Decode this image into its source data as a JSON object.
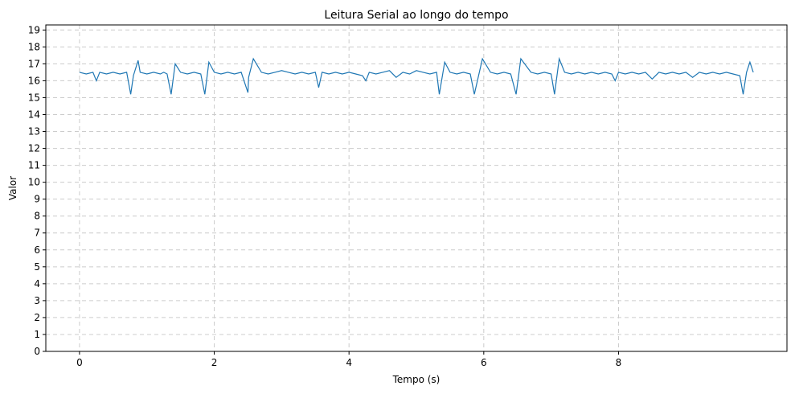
{
  "chart_data": {
    "type": "line",
    "title": "Leitura Serial ao longo do tempo",
    "xlabel": "Tempo (s)",
    "ylabel": "Valor",
    "xlim": [
      -0.5,
      10.5
    ],
    "ylim": [
      0,
      19.3
    ],
    "xticks": [
      0,
      2,
      4,
      6,
      8
    ],
    "yticks": [
      0,
      1,
      2,
      3,
      4,
      5,
      6,
      7,
      8,
      9,
      10,
      11,
      12,
      13,
      14,
      15,
      16,
      17,
      18,
      19
    ],
    "grid": true,
    "line_color": "#1f77b4",
    "grid_color": "#cccccc",
    "series": [
      {
        "x": [
          0.0,
          0.1,
          0.2,
          0.25,
          0.3,
          0.4,
          0.5,
          0.6,
          0.7,
          0.76,
          0.8,
          0.87,
          0.9,
          1.0,
          1.1,
          1.2,
          1.25,
          1.3,
          1.36,
          1.42,
          1.5,
          1.6,
          1.7,
          1.8,
          1.86,
          1.92,
          2.0,
          2.1,
          2.2,
          2.3,
          2.4,
          2.5,
          2.51,
          2.58,
          2.7,
          2.8,
          2.9,
          3.0,
          3.1,
          3.2,
          3.3,
          3.4,
          3.5,
          3.55,
          3.6,
          3.7,
          3.8,
          3.9,
          4.0,
          4.1,
          4.2,
          4.25,
          4.3,
          4.4,
          4.5,
          4.6,
          4.7,
          4.8,
          4.9,
          5.0,
          5.1,
          5.2,
          5.3,
          5.34,
          5.42,
          5.5,
          5.6,
          5.7,
          5.8,
          5.86,
          5.98,
          6.1,
          6.2,
          6.3,
          6.4,
          6.48,
          6.55,
          6.7,
          6.8,
          6.9,
          7.0,
          7.05,
          7.12,
          7.2,
          7.3,
          7.4,
          7.5,
          7.6,
          7.7,
          7.8,
          7.9,
          7.95,
          8.0,
          8.1,
          8.2,
          8.3,
          8.4,
          8.5,
          8.6,
          8.7,
          8.8,
          8.9,
          9.0,
          9.1,
          9.2,
          9.3,
          9.4,
          9.5,
          9.6,
          9.7,
          9.8,
          9.85,
          9.9,
          9.95,
          10.0
        ],
        "values": [
          16.5,
          16.4,
          16.5,
          16.0,
          16.5,
          16.4,
          16.5,
          16.4,
          16.5,
          15.2,
          16.3,
          17.2,
          16.5,
          16.4,
          16.5,
          16.4,
          16.5,
          16.4,
          15.2,
          17.0,
          16.5,
          16.4,
          16.5,
          16.4,
          15.2,
          17.1,
          16.5,
          16.4,
          16.5,
          16.4,
          16.5,
          15.3,
          16.2,
          17.3,
          16.5,
          16.4,
          16.5,
          16.6,
          16.5,
          16.4,
          16.5,
          16.4,
          16.5,
          15.6,
          16.5,
          16.4,
          16.5,
          16.4,
          16.5,
          16.4,
          16.3,
          16.0,
          16.5,
          16.4,
          16.5,
          16.6,
          16.2,
          16.5,
          16.4,
          16.6,
          16.5,
          16.4,
          16.5,
          15.2,
          17.1,
          16.5,
          16.4,
          16.5,
          16.4,
          15.2,
          17.3,
          16.5,
          16.4,
          16.5,
          16.4,
          15.2,
          17.3,
          16.5,
          16.4,
          16.5,
          16.4,
          15.2,
          17.3,
          16.5,
          16.4,
          16.5,
          16.4,
          16.5,
          16.4,
          16.5,
          16.4,
          16.0,
          16.5,
          16.4,
          16.5,
          16.4,
          16.5,
          16.1,
          16.5,
          16.4,
          16.5,
          16.4,
          16.5,
          16.2,
          16.5,
          16.4,
          16.5,
          16.4,
          16.5,
          16.4,
          16.3,
          15.2,
          16.5,
          17.1,
          16.5
        ]
      }
    ]
  }
}
